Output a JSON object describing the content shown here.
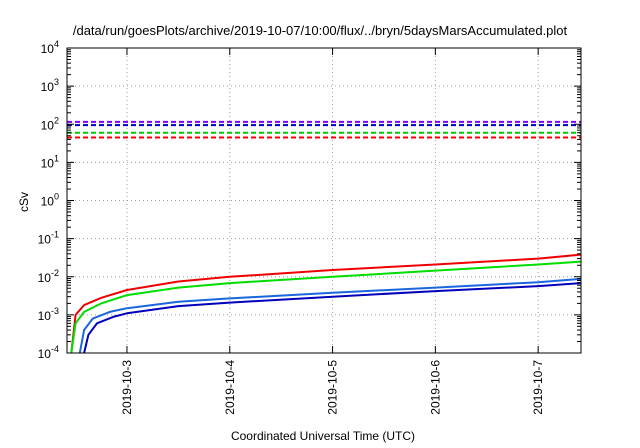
{
  "chart_data": {
    "type": "line",
    "title": "/data/run/goesPlots/archive/2019-10-07/10:00/flux/../bryn/5daysMarsAccumulated.plot",
    "xlabel": "Coordinated Universal Time (UTC)",
    "ylabel": "cSv",
    "y_scale": "log",
    "ylim_exponents": [
      -4,
      4
    ],
    "y_tick_labels": [
      {
        "base": "10",
        "exp": "4",
        "value": 10000
      },
      {
        "base": "10",
        "exp": "3",
        "value": 1000
      },
      {
        "base": "10",
        "exp": "2",
        "value": 100
      },
      {
        "base": "10",
        "exp": "1",
        "value": 10
      },
      {
        "base": "10",
        "exp": "0",
        "value": 1
      },
      {
        "base": "10",
        "exp": "-1",
        "value": 0.1
      },
      {
        "base": "10",
        "exp": "-2",
        "value": 0.01
      },
      {
        "base": "10",
        "exp": "-3",
        "value": 0.001
      },
      {
        "base": "10",
        "exp": "-4",
        "value": 0.0001
      }
    ],
    "xlim": [
      "2019-10-02 10:00",
      "2019-10-07 10:00"
    ],
    "x_tick_labels": [
      "2019-10-3",
      "2019-10-4",
      "2019-10-5",
      "2019-10-6",
      "2019-10-7"
    ],
    "x_tick_dates": [
      "2019-10-03",
      "2019-10-04",
      "2019-10-05",
      "2019-10-06",
      "2019-10-07"
    ],
    "grid": true,
    "thresholds": [
      {
        "color": "#7f00ff",
        "value": 115
      },
      {
        "color": "#0000cc",
        "value": 95
      },
      {
        "color": "#00cc00",
        "value": 60
      },
      {
        "color": "#ff0000",
        "value": 45
      }
    ],
    "series": [
      {
        "color": "#ee0000",
        "x": [
          "2019-10-02 11:00",
          "2019-10-02 12:00",
          "2019-10-02 14:00",
          "2019-10-02 18:00",
          "2019-10-03 00:00",
          "2019-10-03 12:00",
          "2019-10-04 00:00",
          "2019-10-05 00:00",
          "2019-10-06 00:00",
          "2019-10-07 00:00",
          "2019-10-07 10:00"
        ],
        "y": [
          0.0001,
          0.001,
          0.0018,
          0.0028,
          0.0045,
          0.0075,
          0.01,
          0.015,
          0.021,
          0.03,
          0.038
        ]
      },
      {
        "color": "#00dd00",
        "x": [
          "2019-10-02 11:00",
          "2019-10-02 12:00",
          "2019-10-02 14:00",
          "2019-10-02 18:00",
          "2019-10-03 00:00",
          "2019-10-03 12:00",
          "2019-10-04 00:00",
          "2019-10-05 00:00",
          "2019-10-06 00:00",
          "2019-10-07 00:00",
          "2019-10-07 10:00"
        ],
        "y": [
          0.0001,
          0.0006,
          0.0012,
          0.002,
          0.0033,
          0.0052,
          0.0068,
          0.01,
          0.0145,
          0.021,
          0.025
        ]
      },
      {
        "color": "#1a66dd",
        "x": [
          "2019-10-02 13:00",
          "2019-10-02 14:00",
          "2019-10-02 16:00",
          "2019-10-02 20:00",
          "2019-10-03 00:00",
          "2019-10-03 12:00",
          "2019-10-04 00:00",
          "2019-10-05 00:00",
          "2019-10-06 00:00",
          "2019-10-07 00:00",
          "2019-10-07 10:00"
        ],
        "y": [
          0.0001,
          0.0004,
          0.0008,
          0.0012,
          0.0015,
          0.0022,
          0.0027,
          0.0038,
          0.0052,
          0.0072,
          0.0088
        ]
      },
      {
        "color": "#0000bb",
        "x": [
          "2019-10-02 14:00",
          "2019-10-02 15:00",
          "2019-10-02 17:00",
          "2019-10-02 21:00",
          "2019-10-03 00:00",
          "2019-10-03 12:00",
          "2019-10-04 00:00",
          "2019-10-05 00:00",
          "2019-10-06 00:00",
          "2019-10-07 00:00",
          "2019-10-07 10:00"
        ],
        "y": [
          0.0001,
          0.0003,
          0.0006,
          0.0009,
          0.0011,
          0.0017,
          0.0021,
          0.003,
          0.0042,
          0.0057,
          0.0068
        ]
      }
    ]
  }
}
